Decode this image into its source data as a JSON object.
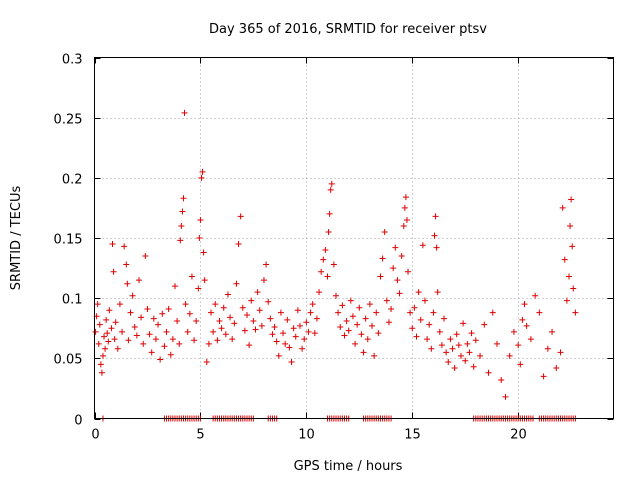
{
  "chart_data": {
    "type": "scatter",
    "title": "Day 365 of 2016, SRMTID for receiver ptsv",
    "xlabel": "GPS time / hours",
    "ylabel": "SRMTID / TECUs",
    "xlim": [
      0,
      24.5
    ],
    "ylim": [
      0,
      0.3
    ],
    "xticks": [
      0,
      5,
      10,
      15,
      20
    ],
    "xtick_labels": [
      "0",
      "5",
      "10",
      "15",
      "20"
    ],
    "yticks": [
      0,
      0.05,
      0.1,
      0.15,
      0.2,
      0.25,
      0.3
    ],
    "ytick_labels": [
      "0",
      "0.05",
      "0.1",
      "0.15",
      "0.2",
      "0.25",
      "0.3"
    ],
    "grid": true,
    "marker": "plus",
    "color": "#e00000",
    "series": [
      {
        "name": "SRMTID",
        "points": [
          [
            0.05,
            0.072
          ],
          [
            0.1,
            0.085
          ],
          [
            0.15,
            0.095
          ],
          [
            0.2,
            0.062
          ],
          [
            0.25,
            0.078
          ],
          [
            0.3,
            0.045
          ],
          [
            0.35,
            0.038
          ],
          [
            0.4,
            0.052
          ],
          [
            0.45,
            0.068
          ],
          [
            0.5,
            0.058
          ],
          [
            0.55,
            0.082
          ],
          [
            0.6,
            0.071
          ],
          [
            0.65,
            0.064
          ],
          [
            0.7,
            0.09
          ],
          [
            0.8,
            0.075
          ],
          [
            0.85,
            0.145
          ],
          [
            0.9,
            0.122
          ],
          [
            0.95,
            0.066
          ],
          [
            1.0,
            0.08
          ],
          [
            1.1,
            0.058
          ],
          [
            1.2,
            0.095
          ],
          [
            1.3,
            0.072
          ],
          [
            1.4,
            0.143
          ],
          [
            1.5,
            0.128
          ],
          [
            1.55,
            0.112
          ],
          [
            1.6,
            0.065
          ],
          [
            1.7,
            0.088
          ],
          [
            1.8,
            0.102
          ],
          [
            1.9,
            0.076
          ],
          [
            2.0,
            0.069
          ],
          [
            2.1,
            0.115
          ],
          [
            2.2,
            0.084
          ],
          [
            2.3,
            0.062
          ],
          [
            2.4,
            0.135
          ],
          [
            2.5,
            0.091
          ],
          [
            2.6,
            0.07
          ],
          [
            2.7,
            0.055
          ],
          [
            2.8,
            0.083
          ],
          [
            2.9,
            0.066
          ],
          [
            3.0,
            0.078
          ],
          [
            3.1,
            0.049
          ],
          [
            3.2,
            0.087
          ],
          [
            3.3,
            0.06
          ],
          [
            3.4,
            0.072
          ],
          [
            3.5,
            0.091
          ],
          [
            3.6,
            0.053
          ],
          [
            3.7,
            0.066
          ],
          [
            3.8,
            0.11
          ],
          [
            3.9,
            0.081
          ],
          [
            4.0,
            0.062
          ],
          [
            4.05,
            0.148
          ],
          [
            4.1,
            0.16
          ],
          [
            4.15,
            0.172
          ],
          [
            4.2,
            0.183
          ],
          [
            4.25,
            0.254
          ],
          [
            4.3,
            0.095
          ],
          [
            4.4,
            0.072
          ],
          [
            4.5,
            0.087
          ],
          [
            4.6,
            0.118
          ],
          [
            4.7,
            0.065
          ],
          [
            4.8,
            0.081
          ],
          [
            4.9,
            0.108
          ],
          [
            4.95,
            0.15
          ],
          [
            5.0,
            0.165
          ],
          [
            5.05,
            0.2
          ],
          [
            5.1,
            0.205
          ],
          [
            5.15,
            0.138
          ],
          [
            5.2,
            0.115
          ],
          [
            5.3,
            0.047
          ],
          [
            5.4,
            0.062
          ],
          [
            5.5,
            0.088
          ],
          [
            5.6,
            0.072
          ],
          [
            5.7,
            0.095
          ],
          [
            5.8,
            0.065
          ],
          [
            5.9,
            0.081
          ],
          [
            6.0,
            0.075
          ],
          [
            6.1,
            0.092
          ],
          [
            6.2,
            0.07
          ],
          [
            6.3,
            0.103
          ],
          [
            6.4,
            0.084
          ],
          [
            6.5,
            0.066
          ],
          [
            6.6,
            0.079
          ],
          [
            6.7,
            0.112
          ],
          [
            6.8,
            0.145
          ],
          [
            6.9,
            0.168
          ],
          [
            7.0,
            0.092
          ],
          [
            7.1,
            0.073
          ],
          [
            7.2,
            0.086
          ],
          [
            7.3,
            0.061
          ],
          [
            7.4,
            0.098
          ],
          [
            7.5,
            0.081
          ],
          [
            7.6,
            0.074
          ],
          [
            7.7,
            0.105
          ],
          [
            7.8,
            0.09
          ],
          [
            7.9,
            0.077
          ],
          [
            8.0,
            0.115
          ],
          [
            8.1,
            0.128
          ],
          [
            8.2,
            0.097
          ],
          [
            8.3,
            0.083
          ],
          [
            8.4,
            0.07
          ],
          [
            8.5,
            0.076
          ],
          [
            8.6,
            0.064
          ],
          [
            8.7,
            0.052
          ],
          [
            8.8,
            0.088
          ],
          [
            8.9,
            0.071
          ],
          [
            9.0,
            0.062
          ],
          [
            9.1,
            0.082
          ],
          [
            9.2,
            0.059
          ],
          [
            9.3,
            0.047
          ],
          [
            9.4,
            0.075
          ],
          [
            9.5,
            0.068
          ],
          [
            9.6,
            0.09
          ],
          [
            9.7,
            0.077
          ],
          [
            9.8,
            0.058
          ],
          [
            9.9,
            0.066
          ],
          [
            10.0,
            0.08
          ],
          [
            10.1,
            0.072
          ],
          [
            10.2,
            0.088
          ],
          [
            10.3,
            0.095
          ],
          [
            10.4,
            0.071
          ],
          [
            10.5,
            0.083
          ],
          [
            10.6,
            0.105
          ],
          [
            10.7,
            0.122
          ],
          [
            10.8,
            0.132
          ],
          [
            10.9,
            0.14
          ],
          [
            11.0,
            0.118
          ],
          [
            11.05,
            0.155
          ],
          [
            11.1,
            0.17
          ],
          [
            11.15,
            0.19
          ],
          [
            11.2,
            0.195
          ],
          [
            11.3,
            0.128
          ],
          [
            11.4,
            0.102
          ],
          [
            11.5,
            0.088
          ],
          [
            11.6,
            0.076
          ],
          [
            11.7,
            0.094
          ],
          [
            11.8,
            0.069
          ],
          [
            11.9,
            0.081
          ],
          [
            12.0,
            0.073
          ],
          [
            12.1,
            0.098
          ],
          [
            12.2,
            0.085
          ],
          [
            12.3,
            0.062
          ],
          [
            12.4,
            0.078
          ],
          [
            12.5,
            0.092
          ],
          [
            12.6,
            0.07
          ],
          [
            12.7,
            0.055
          ],
          [
            12.8,
            0.083
          ],
          [
            12.9,
            0.066
          ],
          [
            13.0,
            0.095
          ],
          [
            13.1,
            0.077
          ],
          [
            13.2,
            0.052
          ],
          [
            13.3,
            0.088
          ],
          [
            13.4,
            0.071
          ],
          [
            13.5,
            0.118
          ],
          [
            13.6,
            0.133
          ],
          [
            13.7,
            0.155
          ],
          [
            13.8,
            0.098
          ],
          [
            13.9,
            0.08
          ],
          [
            14.0,
            0.091
          ],
          [
            14.1,
            0.125
          ],
          [
            14.2,
            0.142
          ],
          [
            14.3,
            0.115
          ],
          [
            14.4,
            0.104
          ],
          [
            14.5,
            0.135
          ],
          [
            14.6,
            0.16
          ],
          [
            14.65,
            0.175
          ],
          [
            14.7,
            0.184
          ],
          [
            14.75,
            0.165
          ],
          [
            14.8,
            0.122
          ],
          [
            14.9,
            0.088
          ],
          [
            15.0,
            0.075
          ],
          [
            15.1,
            0.092
          ],
          [
            15.2,
            0.068
          ],
          [
            15.3,
            0.105
          ],
          [
            15.4,
            0.082
          ],
          [
            15.5,
            0.144
          ],
          [
            15.6,
            0.098
          ],
          [
            15.7,
            0.066
          ],
          [
            15.8,
            0.078
          ],
          [
            15.9,
            0.058
          ],
          [
            16.0,
            0.088
          ],
          [
            16.05,
            0.152
          ],
          [
            16.1,
            0.168
          ],
          [
            16.15,
            0.142
          ],
          [
            16.2,
            0.105
          ],
          [
            16.3,
            0.072
          ],
          [
            16.4,
            0.061
          ],
          [
            16.5,
            0.083
          ],
          [
            16.6,
            0.055
          ],
          [
            16.7,
            0.047
          ],
          [
            16.8,
            0.066
          ],
          [
            16.9,
            0.058
          ],
          [
            17.0,
            0.042
          ],
          [
            17.1,
            0.07
          ],
          [
            17.2,
            0.061
          ],
          [
            17.3,
            0.052
          ],
          [
            17.4,
            0.079
          ],
          [
            17.5,
            0.048
          ],
          [
            17.6,
            0.062
          ],
          [
            17.7,
            0.055
          ],
          [
            17.8,
            0.071
          ],
          [
            17.9,
            0.043
          ],
          [
            18.0,
            0.065
          ],
          [
            18.2,
            0.052
          ],
          [
            18.4,
            0.078
          ],
          [
            18.6,
            0.038
          ],
          [
            18.8,
            0.088
          ],
          [
            19.0,
            0.062
          ],
          [
            19.2,
            0.032
          ],
          [
            19.4,
            0.018
          ],
          [
            19.6,
            0.052
          ],
          [
            19.8,
            0.072
          ],
          [
            20.0,
            0.061
          ],
          [
            20.1,
            0.045
          ],
          [
            20.2,
            0.082
          ],
          [
            20.3,
            0.095
          ],
          [
            20.4,
            0.077
          ],
          [
            20.6,
            0.066
          ],
          [
            20.8,
            0.102
          ],
          [
            21.0,
            0.088
          ],
          [
            21.2,
            0.035
          ],
          [
            21.4,
            0.058
          ],
          [
            21.6,
            0.072
          ],
          [
            21.8,
            0.042
          ],
          [
            22.0,
            0.055
          ],
          [
            22.1,
            0.175
          ],
          [
            22.2,
            0.132
          ],
          [
            22.3,
            0.098
          ],
          [
            22.4,
            0.118
          ],
          [
            22.45,
            0.16
          ],
          [
            22.5,
            0.182
          ],
          [
            22.55,
            0.143
          ],
          [
            22.6,
            0.108
          ],
          [
            22.7,
            0.088
          ]
        ]
      }
    ],
    "zero_markers": [
      0.4,
      3.3,
      3.4,
      3.5,
      3.6,
      3.7,
      3.8,
      3.9,
      4.0,
      4.1,
      4.2,
      4.3,
      4.4,
      4.5,
      4.6,
      4.7,
      4.8,
      4.9,
      5.0,
      5.6,
      5.7,
      5.8,
      5.9,
      6.0,
      6.1,
      6.2,
      6.3,
      6.4,
      6.5,
      6.6,
      6.7,
      6.8,
      6.9,
      7.0,
      7.1,
      7.2,
      7.3,
      7.4,
      7.5,
      8.2,
      8.3,
      8.4,
      8.5,
      8.6,
      11.0,
      11.1,
      11.2,
      11.3,
      11.4,
      11.5,
      11.6,
      11.7,
      11.8,
      11.9,
      12.0,
      12.7,
      12.8,
      12.9,
      13.0,
      13.1,
      13.2,
      13.3,
      13.4,
      13.5,
      13.6,
      13.7,
      13.8,
      13.9,
      14.0,
      17.9,
      18.0,
      18.1,
      18.2,
      18.3,
      18.4,
      18.5,
      18.6,
      18.7,
      18.8,
      18.9,
      19.0,
      19.1,
      19.2,
      19.3,
      19.4,
      19.5,
      19.6,
      19.7,
      19.8,
      19.9,
      20.0,
      20.1,
      20.2,
      20.3,
      20.4,
      20.5,
      20.6,
      20.7,
      21.0,
      21.1,
      21.2,
      21.3,
      21.4,
      21.5,
      21.6,
      21.7,
      21.8,
      21.9,
      22.0,
      22.1,
      22.2,
      22.3,
      22.4,
      22.5,
      22.6,
      22.7
    ]
  }
}
